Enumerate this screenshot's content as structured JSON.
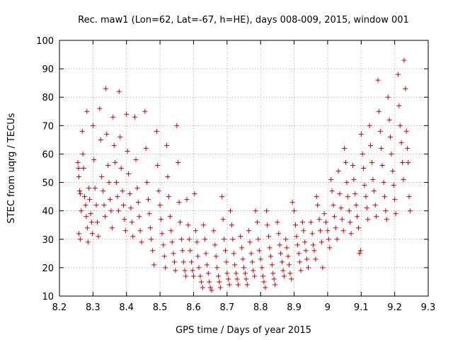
{
  "chart_data": {
    "type": "scatter",
    "title": "Rec. maw1 (Lon=62, Lat=-67, h=HE), days 008-009, 2015, window 001",
    "xlabel": "GPS time / Days of year 2015",
    "ylabel": "STEC from uqrg / TECUs",
    "xlim": [
      8.2,
      9.3
    ],
    "ylim": [
      10,
      100
    ],
    "grid": true,
    "marker": "+",
    "color": "#cc0000",
    "x_ticks": [
      "8.2",
      "8.3",
      "8.4",
      "8.5",
      "8.6",
      "8.7",
      "8.8",
      "8.9",
      "9",
      "9.1",
      "9.2",
      "9.3"
    ],
    "y_ticks": [
      "10",
      "20",
      "30",
      "40",
      "50",
      "60",
      "70",
      "80",
      "90",
      "100"
    ],
    "points": [
      [
        8.255,
        57
      ],
      [
        8.257,
        55
      ],
      [
        8.258,
        52
      ],
      [
        8.26,
        47
      ],
      [
        8.262,
        46
      ],
      [
        8.265,
        40
      ],
      [
        8.258,
        32
      ],
      [
        8.262,
        30
      ],
      [
        8.268,
        68
      ],
      [
        8.27,
        60
      ],
      [
        8.272,
        55
      ],
      [
        8.275,
        45
      ],
      [
        8.278,
        42
      ],
      [
        8.28,
        38
      ],
      [
        8.283,
        34
      ],
      [
        8.285,
        29
      ],
      [
        8.282,
        75
      ],
      [
        8.288,
        48
      ],
      [
        8.29,
        44
      ],
      [
        8.293,
        39
      ],
      [
        8.296,
        36
      ],
      [
        8.298,
        32
      ],
      [
        8.3,
        70
      ],
      [
        8.303,
        58
      ],
      [
        8.306,
        48
      ],
      [
        8.31,
        42
      ],
      [
        8.313,
        36
      ],
      [
        8.316,
        31
      ],
      [
        8.32,
        76
      ],
      [
        8.323,
        65
      ],
      [
        8.326,
        52
      ],
      [
        8.33,
        47
      ],
      [
        8.333,
        42
      ],
      [
        8.336,
        38
      ],
      [
        8.338,
        83
      ],
      [
        8.341,
        67
      ],
      [
        8.345,
        56
      ],
      [
        8.348,
        50
      ],
      [
        8.351,
        44
      ],
      [
        8.354,
        40
      ],
      [
        8.357,
        34
      ],
      [
        8.36,
        73
      ],
      [
        8.363,
        63
      ],
      [
        8.366,
        57
      ],
      [
        8.37,
        50
      ],
      [
        8.373,
        45
      ],
      [
        8.376,
        40
      ],
      [
        8.378,
        82
      ],
      [
        8.381,
        66
      ],
      [
        8.384,
        55
      ],
      [
        8.388,
        47
      ],
      [
        8.391,
        42
      ],
      [
        8.394,
        37
      ],
      [
        8.397,
        33
      ],
      [
        8.4,
        74
      ],
      [
        8.403,
        61
      ],
      [
        8.406,
        53
      ],
      [
        8.41,
        46
      ],
      [
        8.413,
        41
      ],
      [
        8.416,
        36
      ],
      [
        8.419,
        31
      ],
      [
        8.425,
        73
      ],
      [
        8.428,
        58
      ],
      [
        8.432,
        48
      ],
      [
        8.435,
        43
      ],
      [
        8.438,
        38
      ],
      [
        8.441,
        33
      ],
      [
        8.445,
        29
      ],
      [
        8.455,
        75
      ],
      [
        8.458,
        62
      ],
      [
        8.461,
        50
      ],
      [
        8.465,
        44
      ],
      [
        8.468,
        39
      ],
      [
        8.471,
        34
      ],
      [
        8.474,
        30
      ],
      [
        8.478,
        26
      ],
      [
        8.482,
        21
      ],
      [
        8.49,
        68
      ],
      [
        8.493,
        56
      ],
      [
        8.496,
        47
      ],
      [
        8.5,
        42
      ],
      [
        8.503,
        37
      ],
      [
        8.506,
        32
      ],
      [
        8.51,
        28
      ],
      [
        8.513,
        24
      ],
      [
        8.516,
        20
      ],
      [
        8.52,
        63
      ],
      [
        8.523,
        52
      ],
      [
        8.526,
        45
      ],
      [
        8.53,
        38
      ],
      [
        8.533,
        33
      ],
      [
        8.536,
        29
      ],
      [
        8.54,
        25
      ],
      [
        8.543,
        22
      ],
      [
        8.546,
        19
      ],
      [
        8.55,
        70
      ],
      [
        8.554,
        57
      ],
      [
        8.557,
        43
      ],
      [
        8.56,
        36
      ],
      [
        8.564,
        30
      ],
      [
        8.567,
        26
      ],
      [
        8.57,
        22
      ],
      [
        8.574,
        19
      ],
      [
        8.577,
        17
      ],
      [
        8.58,
        44
      ],
      [
        8.584,
        35
      ],
      [
        8.587,
        30
      ],
      [
        8.59,
        26
      ],
      [
        8.594,
        22
      ],
      [
        8.597,
        19
      ],
      [
        8.6,
        17
      ],
      [
        8.603,
        46
      ],
      [
        8.606,
        33
      ],
      [
        8.61,
        29
      ],
      [
        8.613,
        24
      ],
      [
        8.616,
        20
      ],
      [
        8.62,
        17
      ],
      [
        8.623,
        15
      ],
      [
        8.627,
        13
      ],
      [
        8.63,
        35
      ],
      [
        8.634,
        30
      ],
      [
        8.637,
        25
      ],
      [
        8.64,
        21
      ],
      [
        8.644,
        18
      ],
      [
        8.647,
        15
      ],
      [
        8.65,
        13
      ],
      [
        8.654,
        12
      ],
      [
        8.66,
        33
      ],
      [
        8.664,
        28
      ],
      [
        8.667,
        24
      ],
      [
        8.67,
        20
      ],
      [
        8.674,
        17
      ],
      [
        8.677,
        15
      ],
      [
        8.68,
        13
      ],
      [
        8.685,
        45
      ],
      [
        8.688,
        37
      ],
      [
        8.691,
        30
      ],
      [
        8.695,
        26
      ],
      [
        8.698,
        22
      ],
      [
        8.7,
        18
      ],
      [
        8.704,
        16
      ],
      [
        8.707,
        14
      ],
      [
        8.71,
        40
      ],
      [
        8.714,
        35
      ],
      [
        8.717,
        30
      ],
      [
        8.72,
        25
      ],
      [
        8.723,
        21
      ],
      [
        8.727,
        18
      ],
      [
        8.73,
        16
      ],
      [
        8.733,
        14
      ],
      [
        8.74,
        31
      ],
      [
        8.744,
        27
      ],
      [
        8.747,
        23
      ],
      [
        8.75,
        20
      ],
      [
        8.754,
        18
      ],
      [
        8.757,
        16
      ],
      [
        8.76,
        14
      ],
      [
        8.765,
        33
      ],
      [
        8.768,
        29
      ],
      [
        8.772,
        25
      ],
      [
        8.775,
        22
      ],
      [
        8.778,
        19
      ],
      [
        8.782,
        17
      ],
      [
        8.785,
        40
      ],
      [
        8.79,
        36
      ],
      [
        8.793,
        30
      ],
      [
        8.796,
        26
      ],
      [
        8.8,
        23
      ],
      [
        8.804,
        20
      ],
      [
        8.807,
        17
      ],
      [
        8.81,
        15
      ],
      [
        8.814,
        13
      ],
      [
        8.818,
        40
      ],
      [
        8.82,
        35
      ],
      [
        8.824,
        31
      ],
      [
        8.827,
        27
      ],
      [
        8.83,
        24
      ],
      [
        8.834,
        21
      ],
      [
        8.837,
        18
      ],
      [
        8.84,
        16
      ],
      [
        8.843,
        14
      ],
      [
        8.85,
        36
      ],
      [
        8.854,
        32
      ],
      [
        8.857,
        28
      ],
      [
        8.86,
        25
      ],
      [
        8.864,
        22
      ],
      [
        8.867,
        19
      ],
      [
        8.87,
        17
      ],
      [
        8.875,
        30
      ],
      [
        8.878,
        27
      ],
      [
        8.882,
        24
      ],
      [
        8.885,
        21
      ],
      [
        8.888,
        18
      ],
      [
        8.892,
        16
      ],
      [
        8.895,
        43
      ],
      [
        8.9,
        40
      ],
      [
        8.904,
        35
      ],
      [
        8.907,
        31
      ],
      [
        8.91,
        28
      ],
      [
        8.914,
        25
      ],
      [
        8.917,
        22
      ],
      [
        8.92,
        19
      ],
      [
        8.925,
        36
      ],
      [
        8.928,
        33
      ],
      [
        8.932,
        29
      ],
      [
        8.935,
        26
      ],
      [
        8.938,
        23
      ],
      [
        8.942,
        20
      ],
      [
        8.95,
        36
      ],
      [
        8.954,
        32
      ],
      [
        8.957,
        28
      ],
      [
        8.96,
        26
      ],
      [
        8.964,
        23
      ],
      [
        8.967,
        45
      ],
      [
        8.97,
        42
      ],
      [
        8.975,
        37
      ],
      [
        8.978,
        33
      ],
      [
        8.982,
        29
      ],
      [
        8.985,
        20
      ],
      [
        8.99,
        39
      ],
      [
        8.995,
        36
      ],
      [
        9.0,
        33
      ],
      [
        9.003,
        30
      ],
      [
        9.006,
        27
      ],
      [
        9.01,
        51
      ],
      [
        9.013,
        47
      ],
      [
        9.017,
        42
      ],
      [
        9.02,
        38
      ],
      [
        9.024,
        34
      ],
      [
        9.028,
        30
      ],
      [
        9.032,
        54
      ],
      [
        9.036,
        46
      ],
      [
        9.04,
        41
      ],
      [
        9.043,
        37
      ],
      [
        9.047,
        33
      ],
      [
        9.05,
        62
      ],
      [
        9.054,
        57
      ],
      [
        9.057,
        50
      ],
      [
        9.06,
        45
      ],
      [
        9.064,
        40
      ],
      [
        9.067,
        36
      ],
      [
        9.07,
        32
      ],
      [
        9.075,
        56
      ],
      [
        9.078,
        51
      ],
      [
        9.082,
        46
      ],
      [
        9.085,
        42
      ],
      [
        9.088,
        38
      ],
      [
        9.092,
        34
      ],
      [
        9.095,
        25
      ],
      [
        9.098,
        26
      ],
      [
        9.1,
        67
      ],
      [
        9.104,
        60
      ],
      [
        9.107,
        55
      ],
      [
        9.11,
        49
      ],
      [
        9.114,
        45
      ],
      [
        9.117,
        41
      ],
      [
        9.12,
        37
      ],
      [
        9.125,
        70
      ],
      [
        9.128,
        63
      ],
      [
        9.132,
        57
      ],
      [
        9.135,
        51
      ],
      [
        9.138,
        47
      ],
      [
        9.142,
        42
      ],
      [
        9.145,
        38
      ],
      [
        9.15,
        86
      ],
      [
        9.153,
        75
      ],
      [
        9.157,
        68
      ],
      [
        9.16,
        62
      ],
      [
        9.163,
        56
      ],
      [
        9.167,
        50
      ],
      [
        9.17,
        45
      ],
      [
        9.173,
        40
      ],
      [
        9.176,
        37
      ],
      [
        9.18,
        80
      ],
      [
        9.184,
        72
      ],
      [
        9.187,
        66
      ],
      [
        9.19,
        60
      ],
      [
        9.194,
        54
      ],
      [
        9.197,
        49
      ],
      [
        9.2,
        44
      ],
      [
        9.203,
        39
      ],
      [
        9.21,
        88
      ],
      [
        9.213,
        77
      ],
      [
        9.216,
        70
      ],
      [
        9.22,
        64
      ],
      [
        9.223,
        57
      ],
      [
        9.226,
        51
      ],
      [
        9.228,
        93
      ],
      [
        9.232,
        83
      ],
      [
        9.235,
        68
      ],
      [
        9.238,
        62
      ],
      [
        9.24,
        57
      ],
      [
        9.243,
        45
      ],
      [
        9.246,
        40
      ]
    ]
  }
}
